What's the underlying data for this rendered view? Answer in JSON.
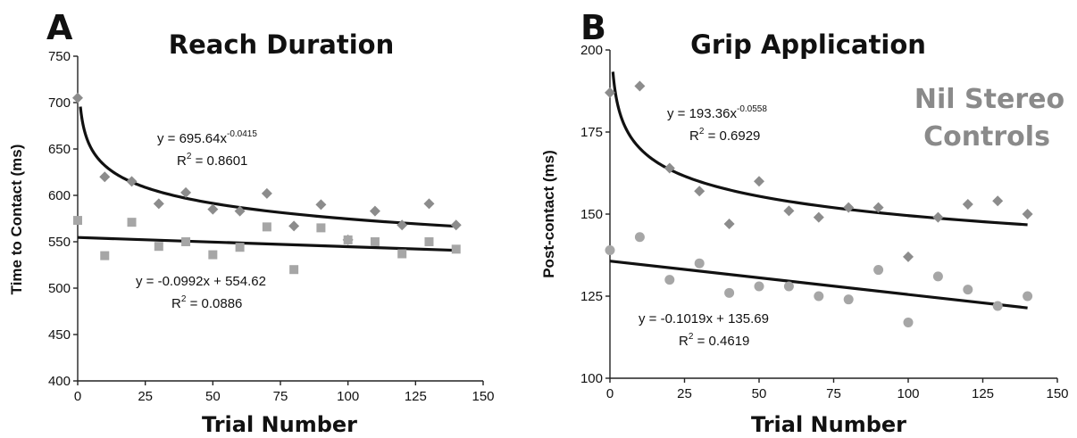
{
  "chart_data": [
    {
      "type": "scatter",
      "panel": "A",
      "title": "Reach Duration",
      "xlabel": "Trial Number",
      "ylabel": "Time to Contact (ms)",
      "xlim": [
        0,
        150
      ],
      "ylim": [
        400,
        750
      ],
      "xticks": [
        "0",
        "25",
        "50",
        "75",
        "100",
        "125",
        "150"
      ],
      "yticks": [
        "400",
        "450",
        "500",
        "550",
        "600",
        "650",
        "700",
        "750"
      ],
      "grid": false,
      "legend": "none",
      "series": [
        {
          "marker": "diamond",
          "color": "#8c8c8c",
          "x": [
            0,
            10,
            20,
            30,
            40,
            50,
            60,
            70,
            80,
            90,
            100,
            110,
            120,
            130,
            140
          ],
          "y": [
            705,
            620,
            615,
            591,
            603,
            585,
            583,
            602,
            567,
            590,
            552,
            583,
            568,
            591,
            568
          ],
          "trendline": {
            "kind": "power",
            "a": 695.64,
            "b": -0.0415,
            "x_start": 1,
            "x_end": 140
          },
          "equation": {
            "base": "y = 695.64x",
            "exp": "-0.0415",
            "r2_label": "R",
            "r2_exp": "2",
            "r2_value": " = 0.8601"
          }
        },
        {
          "marker": "square",
          "color": "#a6a6a6",
          "x": [
            0,
            10,
            20,
            30,
            40,
            50,
            60,
            70,
            80,
            90,
            100,
            110,
            120,
            130,
            140
          ],
          "y": [
            573,
            535,
            571,
            545,
            550,
            536,
            544,
            566,
            520,
            565,
            552,
            550,
            537,
            550,
            542
          ],
          "trendline": {
            "kind": "linear",
            "m": -0.0992,
            "c": 554.62,
            "x_start": 0,
            "x_end": 140
          },
          "equation": {
            "base": "y = -0.0992x + 554.62",
            "exp": "",
            "r2_label": "R",
            "r2_exp": "2",
            "r2_value": " = 0.0886"
          }
        }
      ]
    },
    {
      "type": "scatter",
      "panel": "B",
      "title": "Grip Application",
      "xlabel": "Trial Number",
      "ylabel": "Post-contact (ms)",
      "xlim": [
        0,
        150
      ],
      "ylim": [
        100,
        200
      ],
      "xticks": [
        "0",
        "25",
        "50",
        "75",
        "100",
        "125",
        "150"
      ],
      "yticks": [
        "100",
        "125",
        "150",
        "175",
        "200"
      ],
      "grid": false,
      "legend": "none",
      "annotation": [
        "Nil Stereo",
        "Controls"
      ],
      "series": [
        {
          "marker": "diamond",
          "color": "#8c8c8c",
          "x": [
            0,
            10,
            20,
            30,
            40,
            50,
            60,
            70,
            80,
            90,
            100,
            110,
            120,
            130,
            140
          ],
          "y": [
            187,
            189,
            164,
            157,
            147,
            160,
            151,
            149,
            152,
            152,
            137,
            149,
            153,
            154,
            150
          ],
          "trendline": {
            "kind": "power",
            "a": 193.36,
            "b": -0.0558,
            "x_start": 1,
            "x_end": 140
          },
          "equation": {
            "base": "y = 193.36x",
            "exp": "-0.0558",
            "r2_label": "R",
            "r2_exp": "2",
            "r2_value": " = 0.6929"
          }
        },
        {
          "marker": "circle",
          "color": "#a6a6a6",
          "x": [
            0,
            10,
            20,
            30,
            40,
            50,
            60,
            70,
            80,
            90,
            100,
            110,
            120,
            130,
            140
          ],
          "y": [
            139,
            143,
            130,
            135,
            126,
            128,
            128,
            125,
            124,
            133,
            117,
            131,
            127,
            122,
            125
          ],
          "trendline": {
            "kind": "linear",
            "m": -0.1019,
            "c": 135.69,
            "x_start": 0,
            "x_end": 140
          },
          "equation": {
            "base": "y = -0.1019x + 135.69",
            "exp": "",
            "r2_label": "R",
            "r2_exp": "2",
            "r2_value": " = 0.4619"
          }
        }
      ]
    }
  ]
}
